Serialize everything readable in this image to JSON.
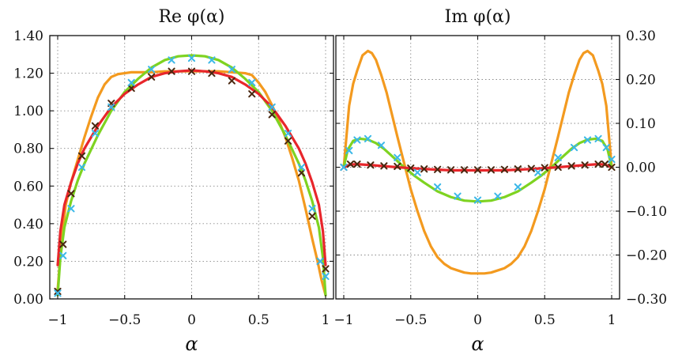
{
  "chart_data": [
    {
      "type": "line",
      "title": "Re φ(α)",
      "xlabel": "α",
      "ylabel": "",
      "xlim": [
        -1,
        1
      ],
      "ylim": [
        0,
        1.4
      ],
      "xticks": [
        "−1",
        "−0.5",
        "0",
        "0.5",
        "1"
      ],
      "yticks": [
        "0.00",
        "0.20",
        "0.40",
        "0.60",
        "0.80",
        "1.00",
        "1.20",
        "1.40"
      ],
      "ytick_side": "left",
      "grid": true,
      "series": [
        {
          "name": "orange",
          "color": "#f39a1f",
          "style": "line",
          "x": [
            -1,
            -0.97,
            -0.94,
            -0.9,
            -0.85,
            -0.8,
            -0.75,
            -0.7,
            -0.65,
            -0.6,
            -0.55,
            -0.5,
            -0.45,
            -0.4,
            -0.3,
            -0.2,
            -0.1,
            0,
            0.1,
            0.2,
            0.3,
            0.4,
            0.45,
            0.5,
            0.55,
            0.6,
            0.65,
            0.7,
            0.75,
            0.8,
            0.85,
            0.9,
            0.94,
            0.97,
            1
          ],
          "y": [
            0.05,
            0.32,
            0.5,
            0.62,
            0.74,
            0.86,
            0.97,
            1.07,
            1.14,
            1.18,
            1.195,
            1.2,
            1.205,
            1.205,
            1.205,
            1.21,
            1.21,
            1.21,
            1.21,
            1.21,
            1.205,
            1.2,
            1.19,
            1.15,
            1.1,
            1.03,
            0.95,
            0.86,
            0.75,
            0.63,
            0.48,
            0.32,
            0.2,
            0.1,
            0.02
          ]
        },
        {
          "name": "green",
          "color": "#7ed321",
          "style": "line",
          "x": [
            -1,
            -0.98,
            -0.95,
            -0.9,
            -0.85,
            -0.8,
            -0.7,
            -0.6,
            -0.5,
            -0.4,
            -0.3,
            -0.2,
            -0.1,
            0,
            0.1,
            0.2,
            0.3,
            0.4,
            0.5,
            0.6,
            0.7,
            0.8,
            0.85,
            0.9,
            0.95,
            0.98,
            1
          ],
          "y": [
            0.02,
            0.22,
            0.38,
            0.52,
            0.63,
            0.72,
            0.87,
            1.0,
            1.1,
            1.17,
            1.23,
            1.27,
            1.29,
            1.295,
            1.29,
            1.27,
            1.23,
            1.17,
            1.1,
            1.0,
            0.87,
            0.72,
            0.63,
            0.52,
            0.38,
            0.22,
            0.02
          ]
        },
        {
          "name": "red",
          "color": "#e8262b",
          "style": "line",
          "x": [
            -1,
            -0.98,
            -0.95,
            -0.9,
            -0.85,
            -0.8,
            -0.7,
            -0.6,
            -0.5,
            -0.4,
            -0.3,
            -0.2,
            -0.1,
            0,
            0.1,
            0.2,
            0.3,
            0.4,
            0.5,
            0.6,
            0.7,
            0.8,
            0.85,
            0.9,
            0.95,
            0.98,
            1
          ],
          "y": [
            0.18,
            0.36,
            0.5,
            0.62,
            0.72,
            0.8,
            0.92,
            1.02,
            1.09,
            1.14,
            1.18,
            1.2,
            1.21,
            1.215,
            1.21,
            1.2,
            1.18,
            1.14,
            1.09,
            1.02,
            0.92,
            0.8,
            0.72,
            0.62,
            0.5,
            0.36,
            0.18
          ]
        },
        {
          "name": "dark-markers",
          "color": "#4a2810",
          "style": "x",
          "x": [
            -1,
            -0.96,
            -0.9,
            -0.82,
            -0.72,
            -0.6,
            -0.45,
            -0.3,
            -0.15,
            0,
            0.15,
            0.3,
            0.45,
            0.6,
            0.72,
            0.82,
            0.9,
            0.96,
            1
          ],
          "y": [
            0.04,
            0.29,
            0.56,
            0.76,
            0.92,
            1.04,
            1.12,
            1.18,
            1.21,
            1.21,
            1.2,
            1.16,
            1.09,
            0.98,
            0.84,
            0.67,
            0.44,
            0.2,
            0.16
          ]
        },
        {
          "name": "cyan-markers",
          "color": "#3cb8e8",
          "style": "x",
          "x": [
            -1,
            -0.96,
            -0.9,
            -0.82,
            -0.72,
            -0.6,
            -0.45,
            -0.3,
            -0.15,
            0,
            0.15,
            0.3,
            0.45,
            0.6,
            0.72,
            0.82,
            0.9,
            0.96,
            1
          ],
          "y": [
            0.03,
            0.23,
            0.48,
            0.7,
            0.88,
            1.02,
            1.15,
            1.22,
            1.27,
            1.28,
            1.27,
            1.22,
            1.15,
            1.02,
            0.88,
            0.7,
            0.48,
            0.2,
            0.12
          ]
        }
      ]
    },
    {
      "type": "line",
      "title": "Im φ(α)",
      "xlabel": "α",
      "ylabel": "",
      "xlim": [
        -1,
        1
      ],
      "ylim": [
        -0.3,
        0.3
      ],
      "xticks": [
        "−1",
        "−0.5",
        "0",
        "0.5",
        "1"
      ],
      "yticks": [
        "−0.30",
        "−0.20",
        "−0.10",
        "0.00",
        "0.10",
        "0.20",
        "0.30"
      ],
      "ytick_side": "right",
      "grid": true,
      "series": [
        {
          "name": "orange",
          "color": "#f39a1f",
          "style": "line",
          "x": [
            -1,
            -0.98,
            -0.96,
            -0.93,
            -0.9,
            -0.86,
            -0.82,
            -0.79,
            -0.76,
            -0.72,
            -0.68,
            -0.64,
            -0.6,
            -0.55,
            -0.5,
            -0.45,
            -0.4,
            -0.35,
            -0.3,
            -0.25,
            -0.2,
            -0.15,
            -0.1,
            -0.05,
            0,
            0.05,
            0.1,
            0.15,
            0.2,
            0.25,
            0.3,
            0.35,
            0.4,
            0.45,
            0.5,
            0.55,
            0.6,
            0.64,
            0.68,
            0.72,
            0.76,
            0.79,
            0.82,
            0.86,
            0.9,
            0.93,
            0.96,
            0.98,
            1
          ],
          "y": [
            0.0,
            0.07,
            0.14,
            0.19,
            0.22,
            0.255,
            0.265,
            0.26,
            0.245,
            0.21,
            0.17,
            0.12,
            0.07,
            0.01,
            -0.05,
            -0.1,
            -0.145,
            -0.18,
            -0.205,
            -0.22,
            -0.23,
            -0.235,
            -0.24,
            -0.242,
            -0.242,
            -0.242,
            -0.24,
            -0.235,
            -0.23,
            -0.22,
            -0.205,
            -0.18,
            -0.145,
            -0.1,
            -0.05,
            0.01,
            0.07,
            0.12,
            0.17,
            0.21,
            0.245,
            0.26,
            0.265,
            0.255,
            0.22,
            0.19,
            0.14,
            0.07,
            0.0
          ]
        },
        {
          "name": "green",
          "color": "#7ed321",
          "style": "line",
          "x": [
            -1,
            -0.97,
            -0.93,
            -0.88,
            -0.82,
            -0.76,
            -0.7,
            -0.62,
            -0.55,
            -0.47,
            -0.4,
            -0.3,
            -0.2,
            -0.1,
            0,
            0.1,
            0.2,
            0.3,
            0.4,
            0.47,
            0.55,
            0.62,
            0.7,
            0.76,
            0.82,
            0.88,
            0.93,
            0.97,
            1
          ],
          "y": [
            0.0,
            0.04,
            0.06,
            0.065,
            0.063,
            0.055,
            0.042,
            0.02,
            0.0,
            -0.02,
            -0.035,
            -0.055,
            -0.068,
            -0.076,
            -0.078,
            -0.076,
            -0.068,
            -0.055,
            -0.035,
            -0.02,
            0.0,
            0.02,
            0.042,
            0.055,
            0.063,
            0.065,
            0.06,
            0.04,
            0.0
          ]
        },
        {
          "name": "red",
          "color": "#e8262b",
          "style": "line",
          "x": [
            -1,
            -0.95,
            -0.9,
            -0.8,
            -0.6,
            -0.4,
            -0.2,
            0,
            0.2,
            0.4,
            0.6,
            0.8,
            0.9,
            0.95,
            1
          ],
          "y": [
            0.0,
            0.006,
            0.007,
            0.005,
            0.0,
            -0.004,
            -0.007,
            -0.007,
            -0.007,
            -0.004,
            0.0,
            0.005,
            0.007,
            0.006,
            0.0
          ]
        },
        {
          "name": "dark-markers",
          "color": "#4a2810",
          "style": "x",
          "x": [
            -1,
            -0.95,
            -0.9,
            -0.8,
            -0.7,
            -0.6,
            -0.5,
            -0.4,
            -0.3,
            -0.2,
            -0.1,
            0,
            0.1,
            0.2,
            0.3,
            0.4,
            0.5,
            0.6,
            0.7,
            0.8,
            0.9,
            0.95,
            1
          ],
          "y": [
            0.0,
            0.007,
            0.007,
            0.005,
            0.003,
            0.002,
            -0.002,
            -0.004,
            -0.005,
            -0.006,
            -0.006,
            -0.006,
            -0.006,
            -0.005,
            -0.004,
            -0.003,
            -0.001,
            0.0,
            0.003,
            0.005,
            0.007,
            0.007,
            0.0
          ]
        },
        {
          "name": "cyan-markers",
          "color": "#3cb8e8",
          "style": "x",
          "x": [
            -1,
            -0.96,
            -0.9,
            -0.82,
            -0.72,
            -0.6,
            -0.45,
            -0.3,
            -0.15,
            0,
            0.15,
            0.3,
            0.45,
            0.6,
            0.72,
            0.82,
            0.9,
            0.96,
            1
          ],
          "y": [
            0.0,
            0.038,
            0.062,
            0.065,
            0.05,
            0.022,
            -0.012,
            -0.045,
            -0.066,
            -0.075,
            -0.066,
            -0.045,
            -0.012,
            0.022,
            0.045,
            0.062,
            0.065,
            0.045,
            0.018
          ]
        }
      ]
    }
  ]
}
